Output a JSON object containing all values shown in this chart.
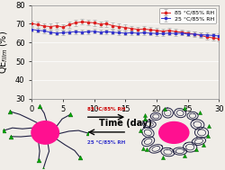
{
  "title": "",
  "xlabel": "Time (day)",
  "ylabel": "QE$_{film}$ (%)",
  "xlim": [
    0,
    30
  ],
  "ylim": [
    30,
    80
  ],
  "yticks": [
    30,
    40,
    50,
    60,
    70,
    80
  ],
  "xticks": [
    0,
    5,
    10,
    15,
    20,
    25,
    30
  ],
  "red_x": [
    0,
    1,
    2,
    3,
    4,
    5,
    6,
    7,
    8,
    9,
    10,
    11,
    12,
    13,
    14,
    15,
    16,
    17,
    18,
    19,
    20,
    21,
    22,
    23,
    24,
    25,
    26,
    27,
    28,
    29,
    30
  ],
  "red_y": [
    70.2,
    69.5,
    68.8,
    68.5,
    69.0,
    68.2,
    69.5,
    70.5,
    71.0,
    70.8,
    70.5,
    69.8,
    70.0,
    69.0,
    68.5,
    68.0,
    67.5,
    67.0,
    67.2,
    66.8,
    66.5,
    66.0,
    66.5,
    65.8,
    65.5,
    65.0,
    64.5,
    63.8,
    63.0,
    62.5,
    62.0
  ],
  "red_err": [
    1.5,
    1.5,
    1.5,
    1.5,
    1.5,
    1.5,
    1.5,
    1.5,
    1.5,
    1.5,
    1.5,
    1.5,
    1.5,
    1.5,
    1.5,
    1.5,
    1.5,
    1.5,
    1.5,
    1.5,
    1.5,
    1.5,
    1.5,
    1.5,
    1.5,
    1.5,
    1.5,
    1.5,
    1.5,
    1.5,
    1.5
  ],
  "blue_x": [
    0,
    1,
    2,
    3,
    4,
    5,
    6,
    7,
    8,
    9,
    10,
    11,
    12,
    13,
    14,
    15,
    16,
    17,
    18,
    19,
    20,
    21,
    22,
    23,
    24,
    25,
    26,
    27,
    28,
    29,
    30
  ],
  "blue_y": [
    67.0,
    66.5,
    66.2,
    65.5,
    65.0,
    65.2,
    65.5,
    65.8,
    65.5,
    65.8,
    66.0,
    65.5,
    65.8,
    65.5,
    65.2,
    65.0,
    65.2,
    65.0,
    65.2,
    65.0,
    64.8,
    64.8,
    65.0,
    64.8,
    65.0,
    64.5,
    64.5,
    64.2,
    64.0,
    63.8,
    63.5
  ],
  "blue_err": [
    1.2,
    1.2,
    1.2,
    1.2,
    1.2,
    1.2,
    1.2,
    1.2,
    1.2,
    1.2,
    1.2,
    1.2,
    1.2,
    1.2,
    1.2,
    1.2,
    1.2,
    1.2,
    1.2,
    1.2,
    1.2,
    1.2,
    1.2,
    1.2,
    1.2,
    1.2,
    1.2,
    1.2,
    1.2,
    1.2,
    1.2
  ],
  "red_color": "#dd2222",
  "blue_color": "#3333cc",
  "legend_label_red": "85 °C/85% RH",
  "legend_label_blue": "25 °C/85% RH",
  "bg_color": "#f0ede8",
  "grid_color": "#ffffff",
  "font_size": 7,
  "chain_color": "#222244",
  "green_color": "#00aa00",
  "pink_color": "#ff1090"
}
